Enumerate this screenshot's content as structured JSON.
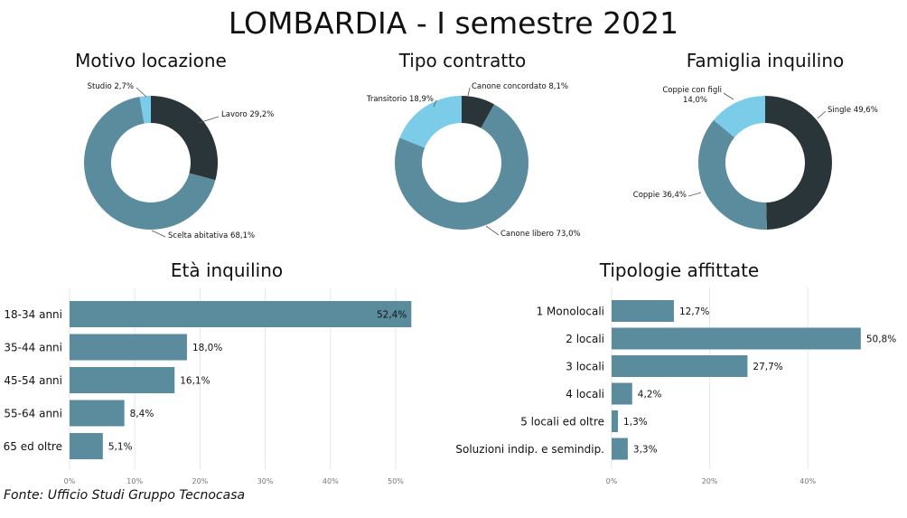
{
  "title": "LOMBARDIA - I semestre 2021",
  "source": "Fonte: Ufficio Studi Gruppo Tecnocasa",
  "colors": {
    "dark": "#2a3539",
    "mid": "#5b8c9e",
    "light": "#7acce8",
    "bar": "#5b8c9e",
    "grid": "#e6e6e6"
  },
  "chart_data": [
    {
      "type": "pie",
      "title": "Motivo locazione",
      "slices": [
        {
          "label": "Lavoro",
          "value_label": "29,2%",
          "value": 29.2,
          "color": "#2a3539"
        },
        {
          "label": "Scelta abitativa",
          "value_label": "68,1%",
          "value": 68.1,
          "color": "#5b8c9e"
        },
        {
          "label": "Studio",
          "value_label": "2,7%",
          "value": 2.7,
          "color": "#7acce8"
        }
      ]
    },
    {
      "type": "pie",
      "title": "Tipo contratto",
      "slices": [
        {
          "label": "Canone concordato",
          "value_label": "8,1%",
          "value": 8.1,
          "color": "#2a3539"
        },
        {
          "label": "Canone libero",
          "value_label": "73,0%",
          "value": 73.0,
          "color": "#5b8c9e"
        },
        {
          "label": "Transitorio",
          "value_label": "18,9%",
          "value": 18.9,
          "color": "#7acce8"
        }
      ]
    },
    {
      "type": "pie",
      "title": "Famiglia inquilino",
      "slices": [
        {
          "label": "Single",
          "value_label": "49,6%",
          "value": 49.6,
          "color": "#2a3539"
        },
        {
          "label": "Coppie",
          "value_label": "36,4%",
          "value": 36.4,
          "color": "#5b8c9e"
        },
        {
          "label": "Coppie con figli",
          "value_label": "14,0%",
          "value": 14.0,
          "color": "#7acce8"
        }
      ]
    },
    {
      "type": "bar",
      "orientation": "horizontal",
      "title": "Età inquilino",
      "categories": [
        "18-34 anni",
        "35-44 anni",
        "45-54 anni",
        "55-64 anni",
        "65 ed oltre"
      ],
      "values": [
        52.4,
        18.0,
        16.1,
        8.4,
        5.1
      ],
      "value_labels": [
        "52,4%",
        "18,0%",
        "16,1%",
        "8,4%",
        "5,1%"
      ],
      "xlim": [
        0,
        60
      ],
      "ticks": [
        0,
        10,
        20,
        30,
        40,
        50
      ],
      "tick_labels": [
        "0%",
        "10%",
        "20%",
        "30%",
        "40%",
        "50%"
      ],
      "grid": true
    },
    {
      "type": "bar",
      "orientation": "horizontal",
      "title": "Tipologie affittate",
      "categories": [
        "1 Monolocali",
        "2 locali",
        "3 locali",
        "4 locali",
        "5 locali ed oltre",
        "Soluzioni indip. e semindip."
      ],
      "values": [
        12.7,
        50.8,
        27.7,
        4.2,
        1.3,
        3.3
      ],
      "value_labels": [
        "12,7%",
        "50,8%",
        "27,7%",
        "4,2%",
        "1,3%",
        "3,3%"
      ],
      "xlim": [
        0,
        60
      ],
      "ticks": [
        0,
        20,
        40
      ],
      "tick_labels": [
        "0%",
        "20%",
        "40%"
      ],
      "grid": true
    }
  ]
}
